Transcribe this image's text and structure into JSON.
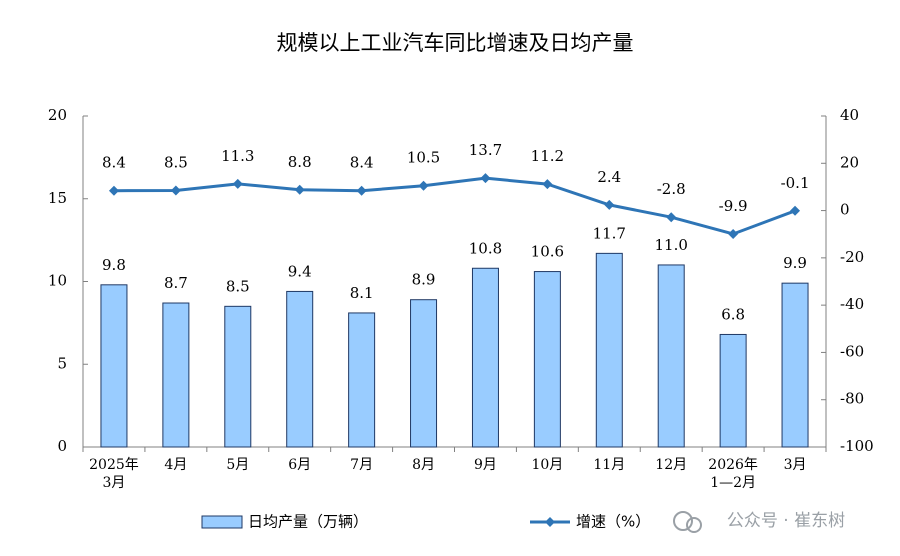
{
  "chart_data": {
    "type": "bar",
    "title": "规模以上工业汽车同比增速及日均产量",
    "categories": [
      "2025年\n3月",
      "4月",
      "5月",
      "6月",
      "7月",
      "8月",
      "9月",
      "10月",
      "11月",
      "12月",
      "2026年\n1—2月",
      "3月"
    ],
    "series": [
      {
        "name": "日均产量（万辆）",
        "type": "bar",
        "color": "#99ccff",
        "values": [
          9.8,
          8.7,
          8.5,
          9.4,
          8.1,
          8.9,
          10.8,
          10.6,
          11.7,
          11.0,
          6.8,
          9.9
        ],
        "value_labels": [
          "9.8",
          "8.7",
          "8.5",
          "9.4",
          "8.1",
          "8.9",
          "10.8",
          "10.6",
          "11.7",
          "11.0",
          "6.8",
          "9.9"
        ]
      },
      {
        "name": "增速（%）",
        "type": "line",
        "axis": "y2",
        "color": "#2e75b6",
        "values": [
          8.4,
          8.5,
          11.3,
          8.8,
          8.4,
          10.5,
          13.7,
          11.2,
          2.4,
          -2.8,
          -9.9,
          -0.1
        ]
      }
    ],
    "ylim": [
      0,
      20
    ],
    "yticks": [
      0,
      5,
      10,
      15,
      20
    ],
    "y2lim": [
      -100,
      40
    ],
    "y2ticks": [
      -100,
      -80,
      -60,
      -40,
      -20,
      0,
      20,
      40
    ],
    "legend": "bottom",
    "watermark": "公众号 · 崔东树"
  }
}
